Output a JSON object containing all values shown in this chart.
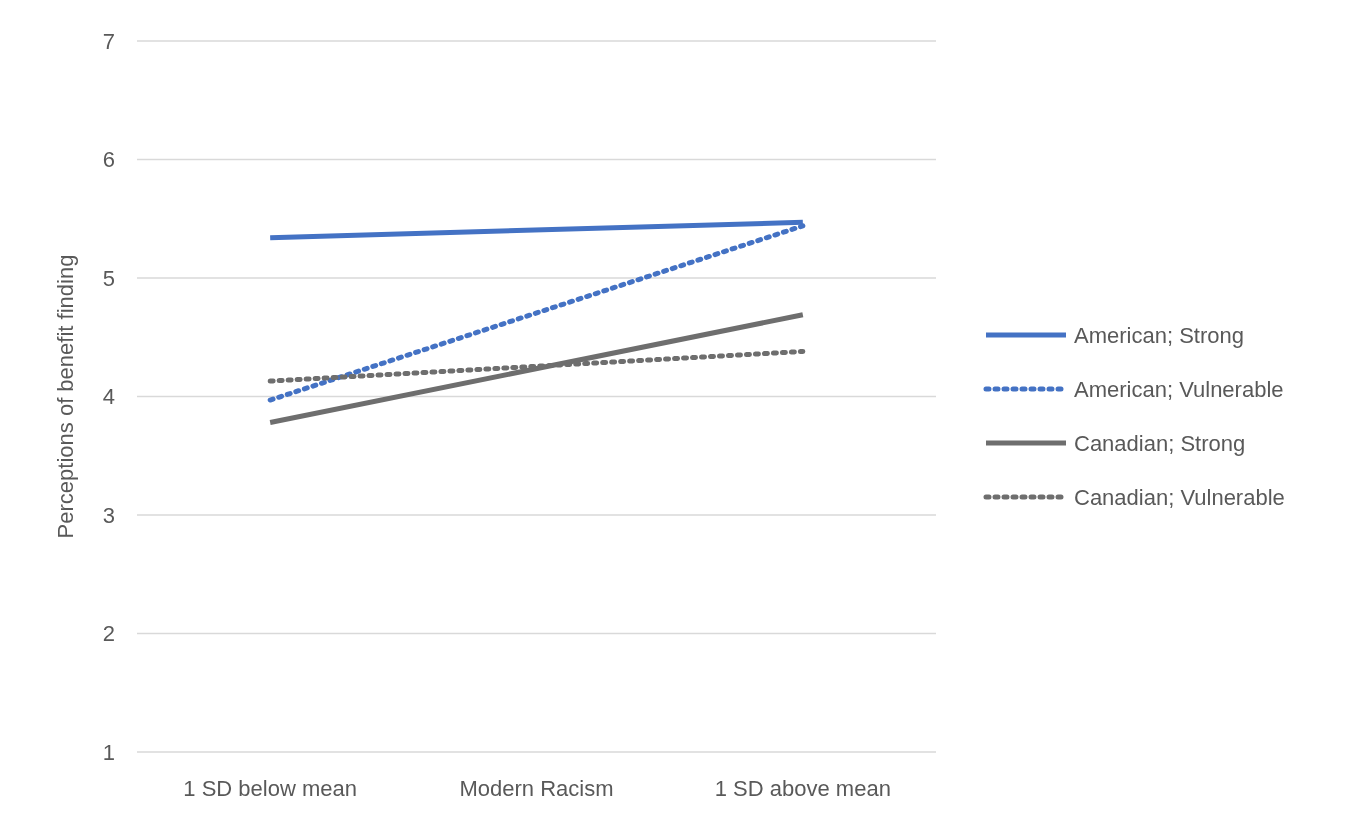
{
  "chart_data": {
    "type": "line",
    "ylabel": "Perceptions of benefit finding",
    "xlabel": "Modern Racism",
    "categories": [
      "1 SD below mean",
      "1 SD above mean"
    ],
    "series": [
      {
        "name": "American; Strong",
        "color": "#4472c4",
        "line_style": "solid",
        "values": [
          5.34,
          5.47
        ]
      },
      {
        "name": "American; Vulnerable",
        "color": "#4472c4",
        "line_style": "dotted",
        "values": [
          3.97,
          5.44
        ]
      },
      {
        "name": "Canadian; Strong",
        "color": "#6e6e6e",
        "line_style": "solid",
        "values": [
          3.78,
          4.69
        ]
      },
      {
        "name": "Canadian; Vulnerable",
        "color": "#6e6e6e",
        "line_style": "dotted",
        "values": [
          4.13,
          4.38
        ]
      }
    ],
    "ylim": [
      1,
      7
    ],
    "yticks": [
      1,
      2,
      3,
      4,
      5,
      6,
      7
    ],
    "grid": "y",
    "legend": "right",
    "marker": "none"
  }
}
